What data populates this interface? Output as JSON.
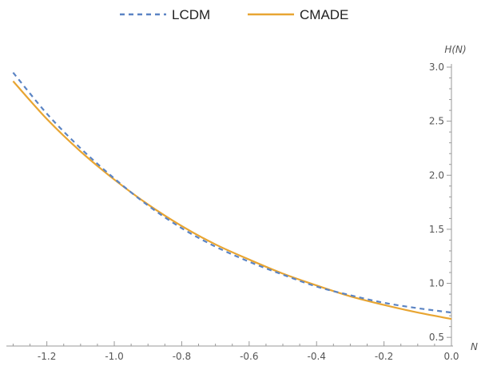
{
  "chart_data": {
    "type": "line",
    "xlabel": "N",
    "ylabel": "H(N)",
    "xlim": [
      -1.32,
      0.0
    ],
    "ylim": [
      0.42,
      3.0
    ],
    "x_ticks": [
      -1.2,
      -1.0,
      -0.8,
      -0.6,
      -0.4,
      -0.2,
      0.0
    ],
    "x_tick_labels": [
      "-1.2",
      "-1.0",
      "-0.8",
      "-0.6",
      "-0.4",
      "-0.2",
      "0.0"
    ],
    "y_ticks": [
      0.5,
      1.0,
      1.5,
      2.0,
      2.5,
      3.0
    ],
    "y_tick_labels": [
      "0.5",
      "1.0",
      "1.5",
      "2.0",
      "2.5",
      "3.0"
    ],
    "legend_position": "top-center",
    "grid": false,
    "series": [
      {
        "name": "LCDM",
        "style": "dashed",
        "color": "#5b84c4",
        "x": [
          -1.3,
          -1.2,
          -1.1,
          -1.0,
          -0.9,
          -0.8,
          -0.7,
          -0.6,
          -0.5,
          -0.4,
          -0.3,
          -0.2,
          -0.1,
          0.0
        ],
        "y": [
          2.95,
          2.57,
          2.25,
          1.97,
          1.72,
          1.51,
          1.34,
          1.2,
          1.08,
          0.97,
          0.89,
          0.82,
          0.77,
          0.73
        ]
      },
      {
        "name": "CMADE",
        "style": "solid",
        "color": "#e8a532",
        "x": [
          -1.3,
          -1.2,
          -1.1,
          -1.0,
          -0.9,
          -0.8,
          -0.7,
          -0.6,
          -0.5,
          -0.4,
          -0.3,
          -0.2,
          -0.1,
          0.0
        ],
        "y": [
          2.87,
          2.52,
          2.22,
          1.96,
          1.73,
          1.53,
          1.36,
          1.22,
          1.09,
          0.98,
          0.88,
          0.8,
          0.73,
          0.67
        ]
      }
    ]
  }
}
